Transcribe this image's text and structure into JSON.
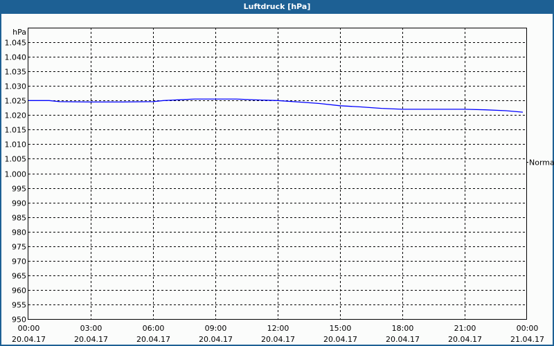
{
  "window": {
    "title": "Luftdruck [hPa]"
  },
  "chart_data": {
    "type": "line",
    "title": "Luftdruck [hPa]",
    "ylabel": "hPa",
    "ylim": [
      950,
      1050
    ],
    "yticks": [
      950,
      955,
      960,
      965,
      970,
      975,
      980,
      985,
      990,
      995,
      1000,
      1005,
      1010,
      1015,
      1020,
      1025,
      1030,
      1035,
      1040,
      1045
    ],
    "ytick_labels": [
      "950",
      "955",
      "960",
      "965",
      "970",
      "975",
      "980",
      "985",
      "990",
      "995",
      "1.000",
      "1.005",
      "1.010",
      "1.015",
      "1.020",
      "1.025",
      "1.030",
      "1.035",
      "1.040",
      "1.045"
    ],
    "xlim_hours": [
      0,
      24
    ],
    "xticks": [
      {
        "time": "00:00",
        "date": "20.04.17"
      },
      {
        "time": "03:00",
        "date": "20.04.17"
      },
      {
        "time": "06:00",
        "date": "20.04.17"
      },
      {
        "time": "09:00",
        "date": "20.04.17"
      },
      {
        "time": "12:00",
        "date": "20.04.17"
      },
      {
        "time": "15:00",
        "date": "20.04.17"
      },
      {
        "time": "18:00",
        "date": "20.04.17"
      },
      {
        "time": "21:00",
        "date": "20.04.17"
      },
      {
        "time": "00:00",
        "date": "21.04.17"
      }
    ],
    "grid": true,
    "series": [
      {
        "color": "#0000ff",
        "x_hours": [
          0,
          1,
          1.5,
          3,
          4.5,
          6,
          6.5,
          8,
          9,
          10,
          11,
          12,
          13,
          14,
          15,
          16,
          17,
          18,
          19,
          20,
          21,
          22,
          23,
          23.8
        ],
        "values": [
          1025,
          1025,
          1024.6,
          1024.5,
          1024.5,
          1024.6,
          1025,
          1025.5,
          1025.5,
          1025.5,
          1025.2,
          1025,
          1024.5,
          1024,
          1023.2,
          1022.8,
          1022.3,
          1022,
          1022,
          1022,
          1022,
          1021.8,
          1021.5,
          1021
        ]
      }
    ],
    "annotations": [
      {
        "label": "Normal",
        "value": 1004,
        "side": "right"
      }
    ]
  }
}
